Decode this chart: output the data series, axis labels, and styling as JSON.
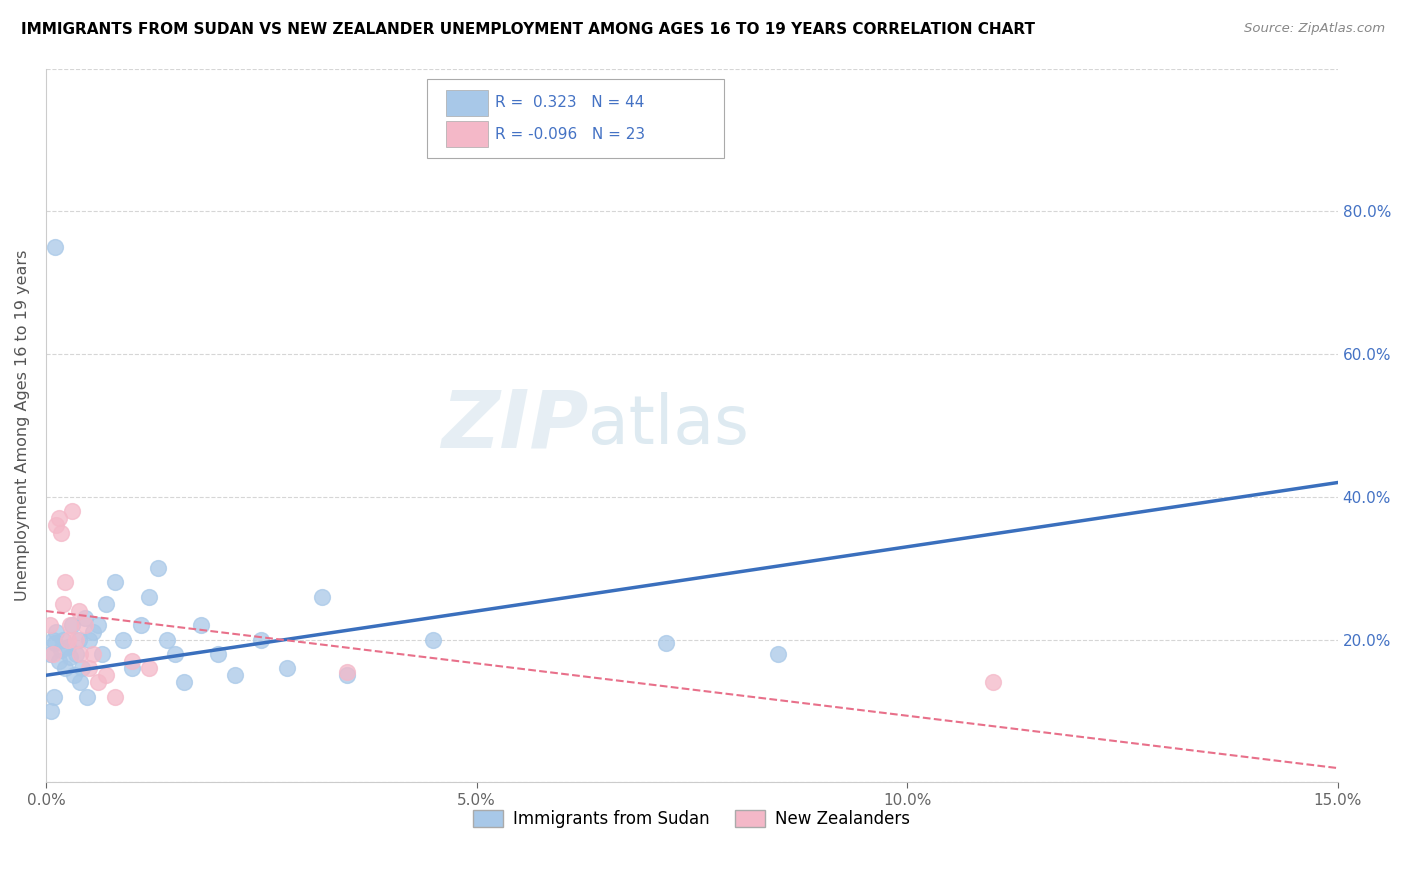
{
  "title": "IMMIGRANTS FROM SUDAN VS NEW ZEALANDER UNEMPLOYMENT AMONG AGES 16 TO 19 YEARS CORRELATION CHART",
  "source": "Source: ZipAtlas.com",
  "ylabel": "Unemployment Among Ages 16 to 19 years",
  "xlim": [
    0.0,
    15.0
  ],
  "ylim": [
    0.0,
    100.0
  ],
  "xticks": [
    0.0,
    5.0,
    10.0,
    15.0
  ],
  "xtick_labels": [
    "0.0%",
    "5.0%",
    "10.0%",
    "15.0%"
  ],
  "yticks_right": [
    20.0,
    40.0,
    60.0,
    80.0
  ],
  "ytick_labels_right": [
    "20.0%",
    "40.0%",
    "60.0%",
    "80.0%"
  ],
  "blue_color": "#a8c8e8",
  "pink_color": "#f4b8c8",
  "blue_line_color": "#3a6fbd",
  "pink_line_color": "#e8708a",
  "legend_label1": "Immigrants from Sudan",
  "legend_label2": "New Zealanders",
  "blue_scatter_x": [
    0.05,
    0.08,
    0.1,
    0.12,
    0.15,
    0.18,
    0.2,
    0.22,
    0.25,
    0.28,
    0.3,
    0.32,
    0.35,
    0.38,
    0.4,
    0.42,
    0.45,
    0.48,
    0.5,
    0.55,
    0.6,
    0.65,
    0.7,
    0.8,
    0.9,
    1.0,
    1.1,
    1.2,
    1.3,
    1.4,
    1.5,
    1.6,
    1.8,
    2.0,
    2.2,
    2.5,
    2.8,
    3.2,
    3.5,
    4.5,
    0.06,
    0.09,
    7.2,
    8.5
  ],
  "blue_scatter_y": [
    18.0,
    20.0,
    19.5,
    21.0,
    17.0,
    18.5,
    20.0,
    16.0,
    19.0,
    17.5,
    22.0,
    15.0,
    18.0,
    20.0,
    14.0,
    16.0,
    23.0,
    12.0,
    20.0,
    21.0,
    22.0,
    18.0,
    25.0,
    28.0,
    20.0,
    16.0,
    22.0,
    26.0,
    30.0,
    20.0,
    18.0,
    14.0,
    22.0,
    18.0,
    15.0,
    20.0,
    16.0,
    26.0,
    15.0,
    20.0,
    10.0,
    12.0,
    19.5,
    18.0
  ],
  "pink_scatter_x": [
    0.05,
    0.08,
    0.12,
    0.15,
    0.18,
    0.2,
    0.22,
    0.25,
    0.28,
    0.3,
    0.35,
    0.38,
    0.4,
    0.45,
    0.5,
    0.55,
    0.6,
    0.7,
    0.8,
    1.0,
    1.2,
    3.5,
    11.0
  ],
  "pink_scatter_y": [
    22.0,
    18.0,
    36.0,
    37.0,
    35.0,
    25.0,
    28.0,
    20.0,
    22.0,
    38.0,
    20.0,
    24.0,
    18.0,
    22.0,
    16.0,
    18.0,
    14.0,
    15.0,
    12.0,
    17.0,
    16.0,
    15.5,
    14.0
  ],
  "blue_outlier_x": [
    0.1
  ],
  "blue_outlier_y": [
    75.0
  ],
  "blue_line_x": [
    0.0,
    15.0
  ],
  "blue_line_y": [
    15.0,
    42.0
  ],
  "pink_line_x": [
    0.0,
    15.0
  ],
  "pink_line_y": [
    24.0,
    2.0
  ],
  "background_color": "#ffffff",
  "grid_color": "#cccccc",
  "title_color": "#000000",
  "axis_color": "#4472c4"
}
